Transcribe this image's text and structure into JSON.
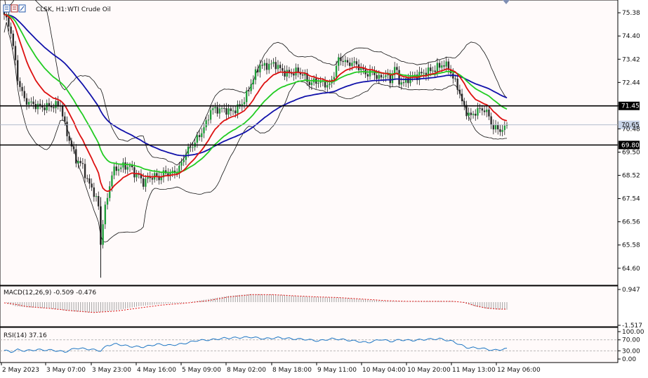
{
  "header": {
    "symbol": "CLSK, H1:",
    "name": "WTI Crude Oil"
  },
  "colors": {
    "background": "#ffffff",
    "plot_background": "#fffafa",
    "candle": "#000000",
    "bull_body": "#1f9e3a",
    "bear_body": "#2c2c2c",
    "ma_fast": "#dd1111",
    "ma_mid": "#22cc22",
    "ma_slow": "#1111aa",
    "bands": "#111111",
    "hline": "#000000",
    "macd_hist": "#9a9a9a",
    "macd_signal": "#dd1111",
    "rsi": "#1f77c4",
    "current_price_tag": "#c8d4e8"
  },
  "chart_data": [
    {
      "type": "candlestick",
      "title": "CLSK, H1: WTI Crude Oil",
      "ylim": [
        64.0,
        75.8
      ],
      "y_ticks": [
        "75.38",
        "74.40",
        "73.42",
        "72.44",
        "71.45",
        "70.48",
        "69.50",
        "68.52",
        "67.54",
        "66.56",
        "65.58",
        "64.60"
      ],
      "x_ticks": [
        "2 May 2023",
        "3 May 07:00",
        "3 May 23:00",
        "4 May 16:00",
        "5 May 09:00",
        "8 May 02:00",
        "8 May 18:00",
        "9 May 11:00",
        "10 May 04:00",
        "10 May 20:00",
        "11 May 13:00",
        "12 May 06:00"
      ],
      "horizontal_lines": [
        {
          "value": 71.45,
          "label": "71.45"
        },
        {
          "value": 69.8,
          "label": "69.80"
        }
      ],
      "current_price": {
        "value": 70.65,
        "label": "70.65"
      },
      "overlays": [
        "moving average (red)",
        "moving average (green)",
        "moving average (blue)",
        "Bollinger bands"
      ],
      "close_path": [
        [
          0,
          75.3
        ],
        [
          3,
          74.6
        ],
        [
          6,
          72.6
        ],
        [
          9,
          71.7
        ],
        [
          13,
          71.5
        ],
        [
          17,
          71.4
        ],
        [
          22,
          71.45
        ],
        [
          25,
          71.5
        ],
        [
          27,
          70.6
        ],
        [
          29,
          70.0
        ],
        [
          32,
          69.2
        ],
        [
          35,
          68.9
        ],
        [
          37,
          68.3
        ],
        [
          40,
          67.8
        ],
        [
          42,
          67.2
        ],
        [
          43,
          65.6
        ],
        [
          44,
          66.6
        ],
        [
          46,
          67.6
        ],
        [
          48,
          68.6
        ],
        [
          50,
          68.8
        ],
        [
          53,
          68.9
        ],
        [
          56,
          68.9
        ],
        [
          58,
          68.6
        ],
        [
          60,
          68.5
        ],
        [
          62,
          68.2
        ],
        [
          64,
          68.4
        ],
        [
          67,
          68.5
        ],
        [
          69,
          68.4
        ],
        [
          71,
          68.6
        ],
        [
          73,
          68.6
        ],
        [
          75,
          68.6
        ],
        [
          77,
          68.7
        ],
        [
          79,
          69.0
        ],
        [
          81,
          69.5
        ],
        [
          84,
          69.8
        ],
        [
          87,
          70.2
        ],
        [
          90,
          70.7
        ],
        [
          92,
          71.3
        ],
        [
          95,
          71.3
        ],
        [
          98,
          71.3
        ],
        [
          101,
          71.2
        ],
        [
          104,
          71.35
        ],
        [
          106,
          71.55
        ],
        [
          108,
          71.9
        ],
        [
          110,
          72.4
        ],
        [
          112,
          72.8
        ],
        [
          114,
          73.2
        ],
        [
          116,
          73.1
        ],
        [
          118,
          73.2
        ],
        [
          121,
          73.2
        ],
        [
          124,
          72.9
        ],
        [
          127,
          72.8
        ],
        [
          130,
          72.9
        ],
        [
          133,
          72.8
        ],
        [
          136,
          72.4
        ],
        [
          139,
          72.5
        ],
        [
          142,
          72.4
        ],
        [
          145,
          72.3
        ],
        [
          147,
          72.8
        ],
        [
          149,
          73.4
        ],
        [
          151,
          73.4
        ],
        [
          153,
          73.2
        ],
        [
          155,
          73.3
        ],
        [
          158,
          73.1
        ],
        [
          161,
          72.8
        ],
        [
          164,
          72.9
        ],
        [
          167,
          72.6
        ],
        [
          170,
          72.8
        ],
        [
          172,
          72.5
        ],
        [
          174,
          73.1
        ],
        [
          176,
          72.5
        ],
        [
          178,
          72.4
        ],
        [
          180,
          72.6
        ],
        [
          183,
          72.7
        ],
        [
          186,
          72.8
        ],
        [
          189,
          72.9
        ],
        [
          192,
          73.0
        ],
        [
          195,
          73.2
        ],
        [
          198,
          73.1
        ],
        [
          200,
          72.6
        ],
        [
          202,
          72.3
        ],
        [
          204,
          71.6
        ],
        [
          206,
          71.2
        ],
        [
          208,
          71.0
        ],
        [
          210,
          71.2
        ],
        [
          212,
          71.3
        ],
        [
          214,
          71.3
        ],
        [
          216,
          71.0
        ],
        [
          218,
          70.5
        ],
        [
          220,
          70.5
        ],
        [
          222,
          70.4
        ],
        [
          224,
          70.6
        ]
      ],
      "n_bars": 225
    },
    {
      "type": "bar",
      "title": "MACD(12,26,9) -0.509 -0.476",
      "indicator": "MACD(12,26,9)",
      "last_values": [
        "-0.509",
        "-0.476"
      ],
      "ylim": [
        -1.517,
        0.947
      ],
      "y_ticks": [
        "0.947",
        "-1.517"
      ],
      "x": [
        0,
        5,
        10,
        20,
        30,
        40,
        50,
        60,
        70,
        80,
        90,
        100,
        110,
        120,
        130,
        140,
        150,
        160,
        170,
        180,
        190,
        200,
        205,
        210,
        215,
        220,
        224
      ],
      "macd": [
        0.0,
        -0.28,
        -0.35,
        -0.42,
        -0.62,
        -0.72,
        -0.55,
        -0.28,
        -0.12,
        -0.05,
        0.18,
        0.42,
        0.55,
        0.52,
        0.42,
        0.34,
        0.3,
        0.18,
        0.08,
        0.02,
        0.06,
        0.06,
        -0.05,
        -0.3,
        -0.45,
        -0.5,
        -0.509
      ],
      "signal": [
        -0.05,
        -0.15,
        -0.3,
        -0.42,
        -0.58,
        -0.7,
        -0.6,
        -0.4,
        -0.2,
        -0.08,
        0.08,
        0.35,
        0.5,
        0.5,
        0.42,
        0.35,
        0.3,
        0.2,
        0.1,
        0.05,
        0.05,
        0.05,
        -0.02,
        -0.25,
        -0.4,
        -0.47,
        -0.476
      ]
    },
    {
      "type": "line",
      "title": "RSI(14) 37.16",
      "indicator": "RSI(14)",
      "last_value": "37.16",
      "ylim": [
        0,
        100
      ],
      "y_ticks": [
        "100.00",
        "70.00",
        "30.00",
        "0.00"
      ],
      "levels": [
        70,
        30
      ],
      "x": [
        0,
        3,
        6,
        9,
        15,
        22,
        27,
        32,
        38,
        43,
        46,
        50,
        56,
        62,
        68,
        74,
        80,
        86,
        92,
        98,
        104,
        110,
        116,
        122,
        128,
        134,
        140,
        146,
        150,
        156,
        162,
        168,
        172,
        176,
        182,
        188,
        194,
        200,
        206,
        212,
        218,
        224
      ],
      "values": [
        32,
        26,
        34,
        30,
        34,
        32,
        26,
        40,
        36,
        30,
        50,
        55,
        46,
        44,
        54,
        50,
        56,
        68,
        70,
        76,
        78,
        80,
        74,
        78,
        74,
        72,
        66,
        74,
        72,
        66,
        60,
        72,
        64,
        70,
        68,
        72,
        74,
        64,
        42,
        40,
        32,
        37.16
      ]
    }
  ]
}
